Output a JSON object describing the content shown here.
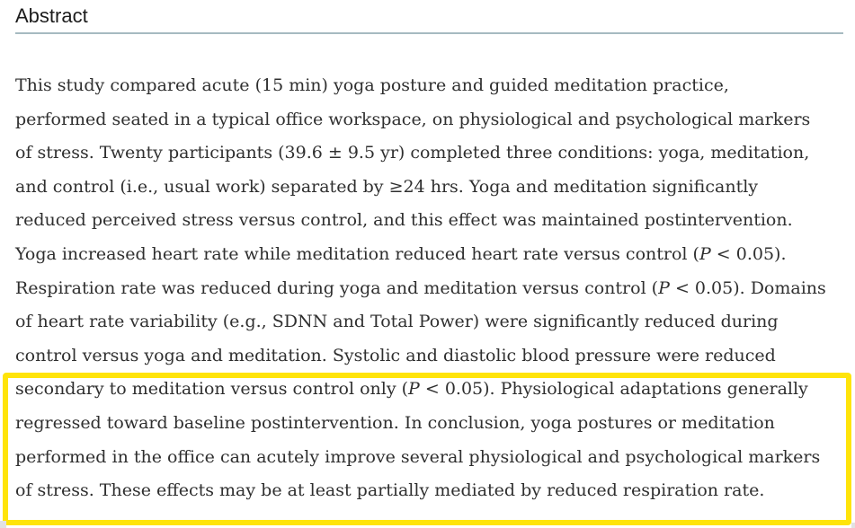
{
  "page": {
    "heading": "Abstract"
  },
  "abstract": {
    "lines": [
      "This study compared acute (15 min) yoga posture and guided meditation practice,",
      "performed seated in a typical office workspace, on physiological and psychological markers",
      "of stress. Twenty participants (39.6 ± 9.5 yr) completed three conditions: yoga, meditation,",
      "and control (i.e., usual work) separated by ≥24 hrs. Yoga and meditation significantly",
      "reduced perceived stress versus control, and this effect was maintained postintervention.",
      "Yoga increased heart rate while meditation reduced heart rate versus control (*P* < 0.05).",
      "Respiration rate was reduced during yoga and meditation versus control (*P* < 0.05). Domains",
      "of heart rate variability (e.g., SDNN and Total Power) were significantly reduced during",
      "control versus yoga and meditation. Systolic and diastolic blood pressure were reduced",
      "secondary to meditation versus control only (*P* < 0.05). Physiological adaptations generally",
      "regressed toward baseline postintervention. In conclusion, yoga postures or meditation",
      "performed in the office can acutely improve several physiological and psychological markers",
      "of stress. These effects may be at least partially mediated by reduced respiration rate."
    ]
  },
  "colors": {
    "highlight_border": "#ffe40a",
    "heading_rule": "#a6bac1",
    "body_text": "#2f2f2f",
    "heading_text": "#1c1c1c",
    "background": "#ffffff"
  }
}
